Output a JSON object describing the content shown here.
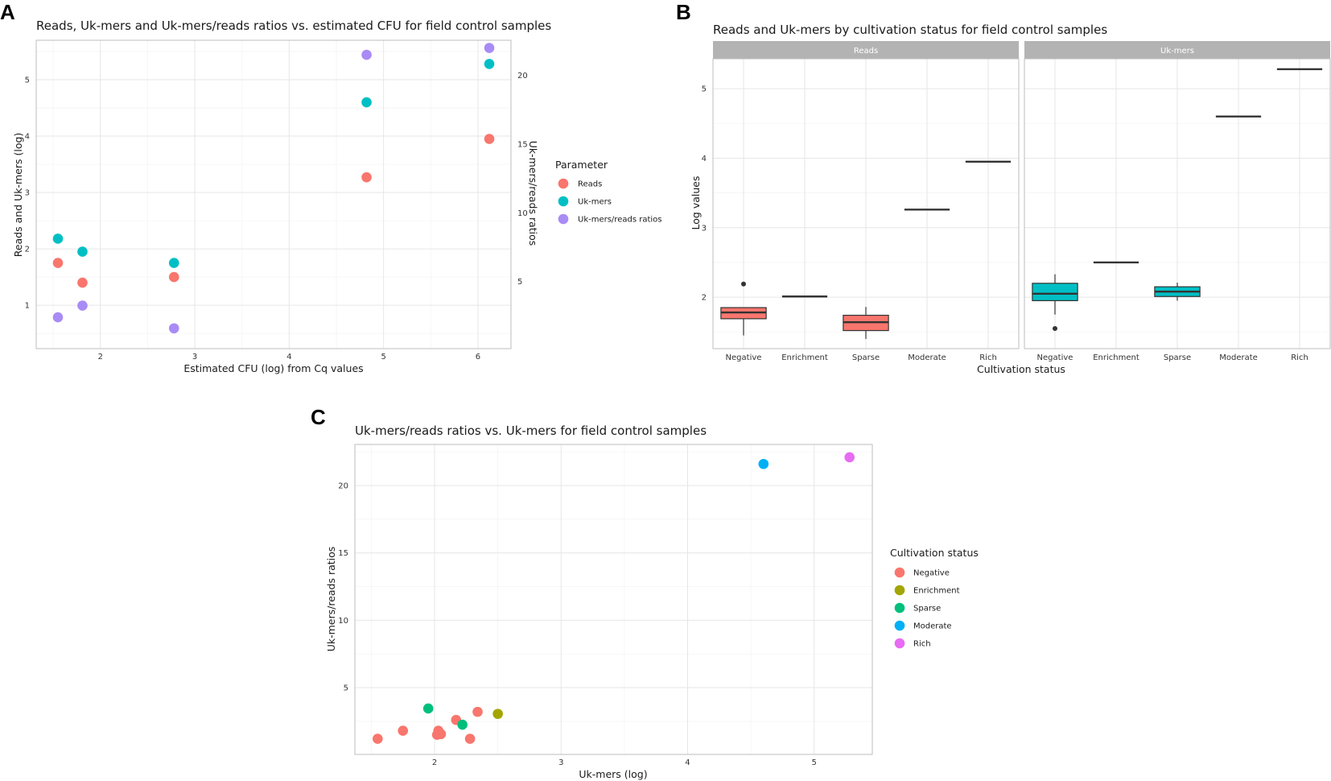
{
  "colors": {
    "reads": "#F8766D",
    "ukmers": "#00BFC4",
    "ratios": "#A98BF5",
    "negative": "#F8766D",
    "enrichment": "#A3A500",
    "sparse": "#00BF7D",
    "moderate": "#00B0F6",
    "rich": "#E76BF3",
    "strip": "#b3b3b3"
  },
  "panels": {
    "a": "A",
    "b": "B",
    "c": "C"
  },
  "chart_data": [
    {
      "id": "A",
      "type": "scatter",
      "title": "Reads, Uk-mers and Uk-mers/reads ratios vs. estimated CFU for field control samples",
      "xlabel": "Estimated CFU (log) from Cq values",
      "ylabel": "Reads and Uk-mers (log)",
      "y2label": "Uk-mers/reads ratios",
      "xlim": [
        1.32,
        6.35
      ],
      "ylim": [
        0.23,
        5.7
      ],
      "y2lim": [
        0.12,
        22.56
      ],
      "xticks": [
        "2",
        "3",
        "4",
        "5",
        "6"
      ],
      "yticks": [
        "1",
        "2",
        "3",
        "4",
        "5"
      ],
      "y2ticks": [
        "5",
        "10",
        "15",
        "20"
      ],
      "legend_title": "Parameter",
      "legend": [
        "Reads",
        "Uk-mers",
        "Uk-mers/reads ratios"
      ],
      "series": [
        {
          "name": "Reads",
          "axis": "left",
          "x": [
            1.55,
            1.81,
            2.78,
            4.82,
            6.12
          ],
          "y": [
            1.75,
            1.4,
            1.5,
            3.27,
            3.95
          ]
        },
        {
          "name": "Uk-mers",
          "axis": "left",
          "x": [
            1.55,
            1.81,
            2.78,
            4.82,
            6.12
          ],
          "y": [
            2.18,
            1.95,
            1.75,
            4.6,
            5.28
          ]
        },
        {
          "name": "Uk-mers/reads ratios",
          "axis": "right",
          "x": [
            1.55,
            1.81,
            2.78,
            4.82,
            6.12
          ],
          "y": [
            2.4,
            3.25,
            1.6,
            21.5,
            22.0
          ]
        }
      ]
    },
    {
      "id": "B",
      "type": "box",
      "title": "Reads and Uk-mers by cultivation status for field control samples",
      "xlabel": "Cultivation status",
      "ylabel": "Log values",
      "ylim": [
        1.26,
        5.43
      ],
      "yticks": [
        "2",
        "3",
        "4",
        "5"
      ],
      "categories": [
        "Negative",
        "Enrichment",
        "Sparse",
        "Moderate",
        "Rich"
      ],
      "facets": [
        {
          "name": "Reads",
          "boxes": [
            {
              "cat": "Negative",
              "min": 1.45,
              "q1": 1.69,
              "median": 1.78,
              "q3": 1.85,
              "max": 1.85,
              "outliers": [
                2.19
              ]
            },
            {
              "cat": "Enrichment",
              "min": 2.01,
              "q1": 2.01,
              "median": 2.01,
              "q3": 2.01,
              "max": 2.01,
              "outliers": []
            },
            {
              "cat": "Sparse",
              "min": 1.4,
              "q1": 1.52,
              "median": 1.64,
              "q3": 1.74,
              "max": 1.86,
              "outliers": []
            },
            {
              "cat": "Moderate",
              "min": 3.26,
              "q1": 3.26,
              "median": 3.26,
              "q3": 3.26,
              "max": 3.26,
              "outliers": []
            },
            {
              "cat": "Rich",
              "min": 3.95,
              "q1": 3.95,
              "median": 3.95,
              "q3": 3.95,
              "max": 3.95,
              "outliers": []
            }
          ]
        },
        {
          "name": "Uk-mers",
          "boxes": [
            {
              "cat": "Negative",
              "min": 1.75,
              "q1": 1.95,
              "median": 2.05,
              "q3": 2.2,
              "max": 2.33,
              "outliers": [
                1.55
              ]
            },
            {
              "cat": "Enrichment",
              "min": 2.5,
              "q1": 2.5,
              "median": 2.5,
              "q3": 2.5,
              "max": 2.5,
              "outliers": []
            },
            {
              "cat": "Sparse",
              "min": 1.95,
              "q1": 2.01,
              "median": 2.08,
              "q3": 2.15,
              "max": 2.21,
              "outliers": []
            },
            {
              "cat": "Moderate",
              "min": 4.6,
              "q1": 4.6,
              "median": 4.6,
              "q3": 4.6,
              "max": 4.6,
              "outliers": []
            },
            {
              "cat": "Rich",
              "min": 5.28,
              "q1": 5.28,
              "median": 5.28,
              "q3": 5.28,
              "max": 5.28,
              "outliers": []
            }
          ]
        }
      ]
    },
    {
      "id": "C",
      "type": "scatter",
      "title": "Uk-mers/reads ratios vs. Uk-mers for field control samples",
      "xlabel": "Uk-mers (log)",
      "ylabel": "Uk-mers/reads ratios",
      "xlim": [
        1.37,
        5.46
      ],
      "ylim": [
        0.04,
        23.05
      ],
      "xticks": [
        "2",
        "3",
        "4",
        "5"
      ],
      "yticks": [
        "5",
        "10",
        "15",
        "20"
      ],
      "legend_title": "Cultivation status",
      "legend": [
        "Negative",
        "Enrichment",
        "Sparse",
        "Moderate",
        "Rich"
      ],
      "series": [
        {
          "name": "Negative",
          "x": [
            1.55,
            1.75,
            2.02,
            2.03,
            2.05,
            2.17,
            2.28,
            2.34
          ],
          "y": [
            1.2,
            1.8,
            1.5,
            1.8,
            1.55,
            2.6,
            1.2,
            3.2
          ]
        },
        {
          "name": "Enrichment",
          "x": [
            2.5
          ],
          "y": [
            3.05
          ]
        },
        {
          "name": "Sparse",
          "x": [
            1.95,
            2.22
          ],
          "y": [
            3.45,
            2.25
          ]
        },
        {
          "name": "Moderate",
          "x": [
            4.6
          ],
          "y": [
            21.6
          ]
        },
        {
          "name": "Rich",
          "x": [
            5.28
          ],
          "y": [
            22.1
          ]
        }
      ]
    }
  ]
}
